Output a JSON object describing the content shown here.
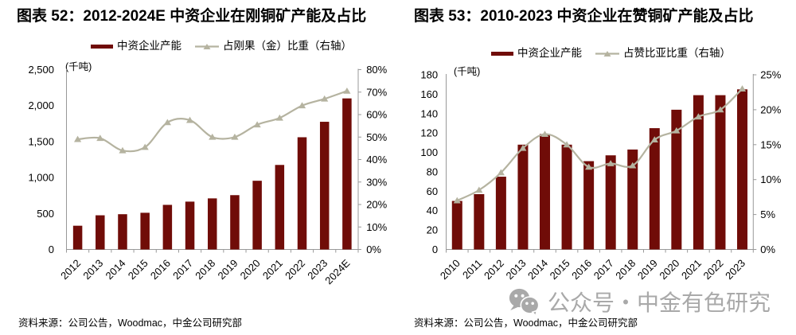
{
  "colors": {
    "bar": "#700c08",
    "line": "#b5b3a0",
    "axis": "#999999",
    "tick_text": "#000000",
    "watermark": "#a9a9a9"
  },
  "watermark": {
    "text": "公众号・中金有色研究"
  },
  "chart_data": [
    {
      "type": "bar+line",
      "title": "图表 52：2012-2024E 中资企业在刚铜矿产能及占比",
      "categories": [
        "2012",
        "2013",
        "2014",
        "2015",
        "2016",
        "2017",
        "2018",
        "2019",
        "2020",
        "2021",
        "2022",
        "2023",
        "2024E"
      ],
      "series": [
        {
          "name": "中资企业产能",
          "type": "bar",
          "axis": "left",
          "values": [
            330,
            475,
            490,
            510,
            620,
            665,
            710,
            755,
            955,
            1175,
            1560,
            1775,
            2100
          ]
        },
        {
          "name": "占刚果（金）比重（右轴）",
          "type": "line",
          "axis": "right",
          "values": [
            49,
            49.5,
            44,
            45.5,
            56.5,
            57.5,
            50,
            50,
            55.5,
            58.5,
            64,
            67,
            70.5
          ]
        }
      ],
      "left_axis": {
        "label": "(千吨)",
        "min": 0,
        "max": 2500,
        "step": 500,
        "format": "thousands"
      },
      "right_axis": {
        "min": 0,
        "max": 80,
        "step": 10,
        "format": "percent"
      },
      "legend_position": "top",
      "grid": false,
      "source_note": "资料来源：公司公告，Woodmac，中金公司研究部"
    },
    {
      "type": "bar+line",
      "title": "图表 53：2010-2023 中资企业在赞铜矿产能及占比",
      "categories": [
        "2010",
        "2011",
        "2012",
        "2013",
        "2014",
        "2015",
        "2016",
        "2017",
        "2018",
        "2019",
        "2020",
        "2021",
        "2022",
        "2023"
      ],
      "series": [
        {
          "name": "中资企业产能",
          "type": "bar",
          "axis": "left",
          "values": [
            50,
            57,
            75,
            108,
            119,
            108,
            91,
            97,
            103,
            125,
            144,
            159,
            159,
            165
          ]
        },
        {
          "name": "占赞比亚比重（右轴）",
          "type": "line",
          "axis": "right",
          "values": [
            7,
            8.5,
            11,
            14.5,
            16.5,
            15,
            11.8,
            12.3,
            12,
            15.7,
            17,
            19,
            20,
            23
          ]
        }
      ],
      "left_axis": {
        "label": "(千吨)",
        "min": 0,
        "max": 180,
        "step": 20,
        "format": "plain"
      },
      "right_axis": {
        "min": 0,
        "max": 25,
        "step": 5,
        "format": "percent"
      },
      "legend_position": "top",
      "grid": false,
      "source_note": "资料来源：公司公告，Woodmac，中金公司研究部"
    }
  ]
}
